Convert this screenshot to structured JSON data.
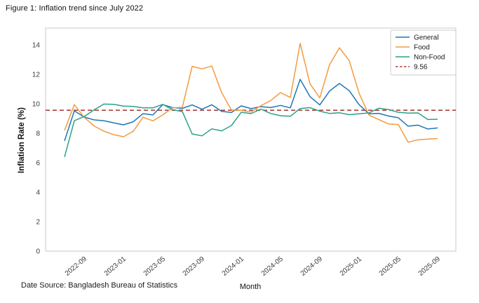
{
  "figure": {
    "title": "Figure 1: Inflation trend since July 2022",
    "footnote": "Date Source: Bangladesh Bureau of Statistics"
  },
  "chart_data": {
    "type": "line",
    "title": "Figure 1: Inflation trend since July 2022",
    "xlabel": "Month",
    "ylabel": "Inflation Rate (%)",
    "x": [
      "2022-07",
      "2022-08",
      "2022-09",
      "2022-10",
      "2022-11",
      "2022-12",
      "2023-01",
      "2023-02",
      "2023-03",
      "2023-04",
      "2023-05",
      "2023-06",
      "2023-07",
      "2023-08",
      "2023-09",
      "2023-10",
      "2023-11",
      "2023-12",
      "2024-01",
      "2024-02",
      "2024-03",
      "2024-04",
      "2024-05",
      "2024-06",
      "2024-07",
      "2024-08",
      "2024-09",
      "2024-10",
      "2024-11",
      "2024-12",
      "2025-01",
      "2025-02",
      "2025-03",
      "2025-04",
      "2025-05",
      "2025-06",
      "2025-07",
      "2025-08",
      "2025-09"
    ],
    "series": [
      {
        "name": "General",
        "color": "#1f77b4",
        "values": [
          7.48,
          9.52,
          9.1,
          8.91,
          8.85,
          8.71,
          8.57,
          8.78,
          9.33,
          9.24,
          9.94,
          9.74,
          9.69,
          9.92,
          9.63,
          9.93,
          9.49,
          9.41,
          9.86,
          9.67,
          9.81,
          9.74,
          9.89,
          9.72,
          11.66,
          10.49,
          9.92,
          10.87,
          11.38,
          10.89,
          9.94,
          9.32,
          9.35,
          9.17,
          9.05,
          8.48,
          8.55,
          8.29,
          8.36
        ]
      },
      {
        "name": "Food",
        "color": "#f29b40",
        "values": [
          8.19,
          9.94,
          9.08,
          8.5,
          8.14,
          7.91,
          7.76,
          8.13,
          9.09,
          8.84,
          9.24,
          9.73,
          9.76,
          12.54,
          12.37,
          12.56,
          10.76,
          9.58,
          9.56,
          9.44,
          9.87,
          10.22,
          10.76,
          10.42,
          14.1,
          11.36,
          10.4,
          12.66,
          13.8,
          12.92,
          10.72,
          9.24,
          8.93,
          8.63,
          8.59,
          7.39,
          7.56,
          7.6,
          7.64
        ]
      },
      {
        "name": "Non-Food",
        "color": "#2aa187",
        "values": [
          6.39,
          8.85,
          9.13,
          9.58,
          9.98,
          9.96,
          9.84,
          9.82,
          9.72,
          9.72,
          9.96,
          9.6,
          9.47,
          7.95,
          7.82,
          8.3,
          8.16,
          8.52,
          9.42,
          9.33,
          9.64,
          9.34,
          9.19,
          9.15,
          9.68,
          9.74,
          9.5,
          9.34,
          9.39,
          9.26,
          9.32,
          9.38,
          9.7,
          9.61,
          9.42,
          9.37,
          9.38,
          8.93,
          8.95
        ]
      }
    ],
    "reference_line": {
      "label": "9.56",
      "value": 9.56,
      "color": "#b0413e",
      "style": "dashed"
    },
    "ylim": [
      0,
      15.14
    ],
    "yticks": [
      0,
      2,
      4,
      6,
      8,
      10,
      12,
      14
    ],
    "xticks": [
      "2022-09",
      "2023-01",
      "2023-05",
      "2023-09",
      "2024-01",
      "2024-05",
      "2024-09",
      "2025-01",
      "2025-05",
      "2025-09"
    ],
    "legend_position": "upper right",
    "grid": false,
    "colors": {
      "spine": "#c9c9c9",
      "tick_text": "#3a3a3a",
      "legend_border": "#cccccc"
    }
  }
}
